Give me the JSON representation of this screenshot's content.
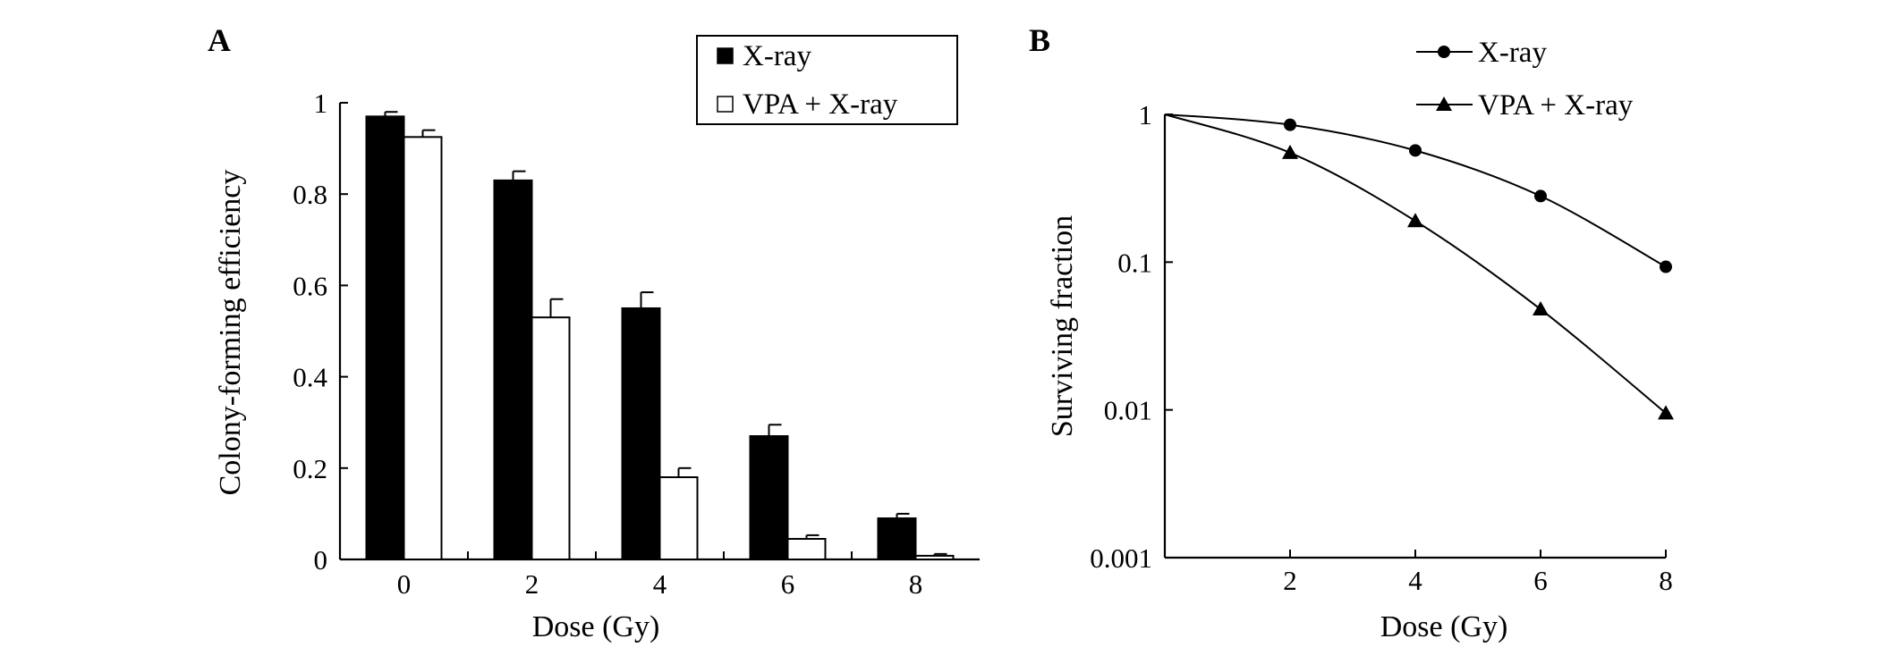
{
  "chart_data": [
    {
      "panel_label": "A",
      "type": "bar",
      "xlabel": "Dose (Gy)",
      "ylabel": "Colony-forming efficiency",
      "ylim": [
        0,
        1
      ],
      "yticks": [
        "0",
        "0.2",
        "0.4",
        "0.6",
        "0.8",
        "1"
      ],
      "categories": [
        "0",
        "2",
        "4",
        "6",
        "8"
      ],
      "legend": "top-right",
      "series": [
        {
          "name": "X-ray",
          "color": "#000000",
          "fill": "solid",
          "values": [
            0.97,
            0.83,
            0.55,
            0.27,
            0.09
          ],
          "errors": [
            0.01,
            0.02,
            0.035,
            0.025,
            0.01
          ]
        },
        {
          "name": "VPA + X-ray",
          "color": "#ffffff",
          "fill": "hollow",
          "values": [
            0.925,
            0.53,
            0.18,
            0.045,
            0.008
          ],
          "errors": [
            0.015,
            0.04,
            0.02,
            0.008,
            0.004
          ]
        }
      ]
    },
    {
      "panel_label": "B",
      "type": "line",
      "xlabel": "Dose (Gy)",
      "ylabel": "Surviving fraction",
      "yscale": "log",
      "ylim": [
        0.001,
        1
      ],
      "yticks": [
        "0.001",
        "0.01",
        "0.1",
        "1"
      ],
      "xlim": [
        0,
        8
      ],
      "xticks": [
        "2",
        "4",
        "6",
        "8"
      ],
      "legend": "top-right",
      "series": [
        {
          "name": "X-ray",
          "marker": "circle",
          "x": [
            0,
            2,
            4,
            6,
            8
          ],
          "y": [
            1,
            0.85,
            0.57,
            0.28,
            0.093
          ]
        },
        {
          "name": "VPA + X-ray",
          "marker": "triangle",
          "x": [
            0,
            2,
            4,
            6,
            8
          ],
          "y": [
            1,
            0.55,
            0.19,
            0.048,
            0.0095
          ]
        }
      ]
    }
  ]
}
